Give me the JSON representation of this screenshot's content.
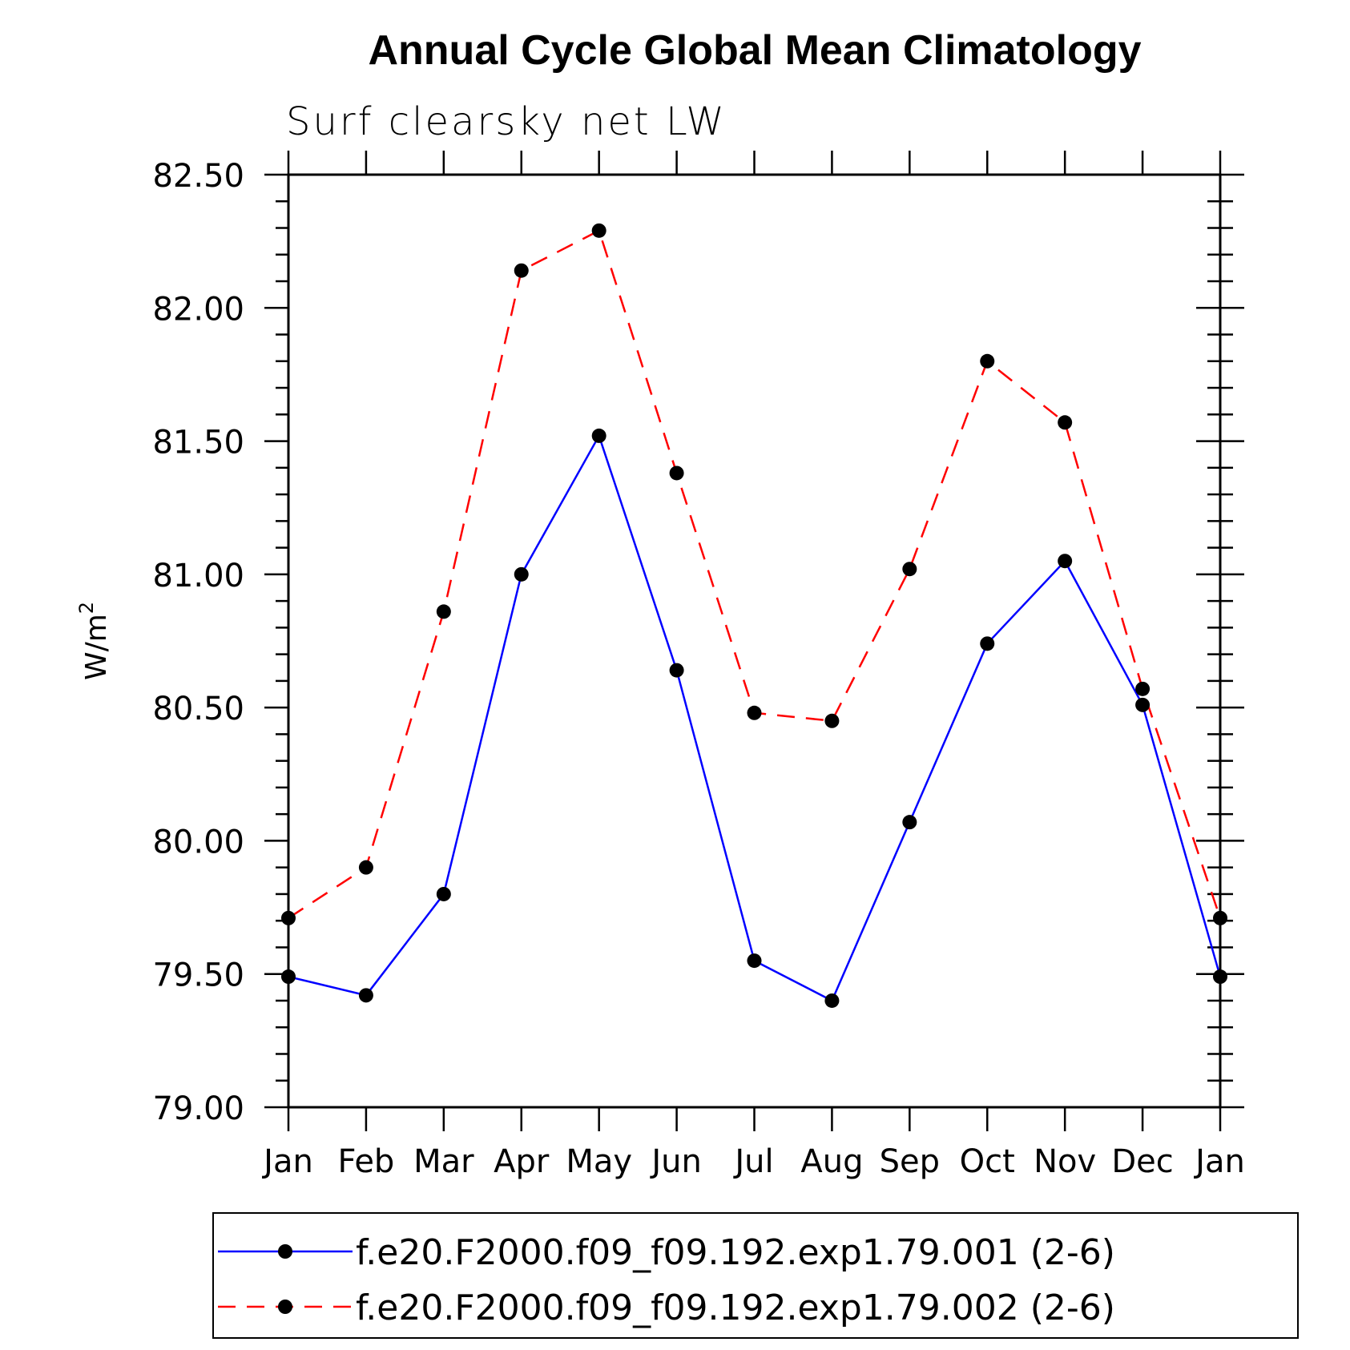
{
  "chart_data": {
    "type": "line",
    "title": "Annual Cycle Global Mean Climatology",
    "subtitle": "Surf clearsky net LW",
    "ylabel": "W/m",
    "ylabel_superscript": "2",
    "ylim": [
      79.0,
      82.5
    ],
    "yticks": [
      "79.00",
      "79.50",
      "80.00",
      "80.50",
      "81.00",
      "81.50",
      "82.00",
      "82.50"
    ],
    "categories": [
      "Jan",
      "Feb",
      "Mar",
      "Apr",
      "May",
      "Jun",
      "Jul",
      "Aug",
      "Sep",
      "Oct",
      "Nov",
      "Dec",
      "Jan"
    ],
    "series": [
      {
        "name": "f.e20.F2000.f09_f09.192.exp1.79.001 (2-6)",
        "color": "#0000ff",
        "dash": "solid",
        "values": [
          79.49,
          79.42,
          79.8,
          81.0,
          81.52,
          80.64,
          79.55,
          79.4,
          80.07,
          80.74,
          81.05,
          80.51,
          79.49
        ]
      },
      {
        "name": "f.e20.F2000.f09_f09.192.exp1.79.002 (2-6)",
        "color": "#ff0000",
        "dash": "dashed",
        "values": [
          79.71,
          79.9,
          80.86,
          82.14,
          82.29,
          81.38,
          80.48,
          80.45,
          81.02,
          81.8,
          81.57,
          80.57,
          79.71
        ]
      }
    ]
  }
}
